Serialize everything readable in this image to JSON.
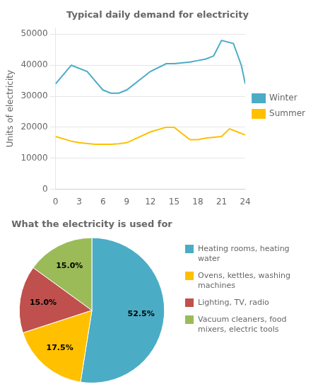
{
  "chart_data": [
    {
      "type": "line",
      "title": "Typical daily demand for electricity",
      "ylabel": "Units of electricity",
      "xlim": [
        0,
        24
      ],
      "xticks": [
        0,
        3,
        6,
        9,
        12,
        15,
        18,
        21,
        24
      ],
      "ylim": [
        0,
        52000
      ],
      "yticks": [
        0,
        10000,
        20000,
        30000,
        40000,
        50000
      ],
      "grid": "y",
      "legend": "right",
      "series": [
        {
          "name": "Winter",
          "color": "#4BACC6",
          "x": [
            0,
            2,
            4,
            6,
            7,
            8,
            9,
            12,
            14,
            15,
            17,
            18,
            19,
            20,
            21,
            22.5,
            23.5,
            24
          ],
          "values": [
            34000,
            40000,
            38000,
            32000,
            31000,
            31000,
            32000,
            38000,
            40500,
            40500,
            41000,
            41500,
            42000,
            43000,
            48000,
            47000,
            40000,
            34000
          ]
        },
        {
          "name": "Summer",
          "color": "#FFC000",
          "x": [
            0,
            2,
            3,
            5,
            7,
            8,
            9,
            12,
            14,
            15,
            17,
            18,
            19,
            21,
            22,
            23,
            24
          ],
          "values": [
            17000,
            15500,
            15000,
            14500,
            14500,
            14700,
            15000,
            18500,
            20000,
            20000,
            16000,
            16000,
            16500,
            17000,
            19500,
            18500,
            17500
          ]
        }
      ]
    },
    {
      "type": "pie",
      "title": "What the electricity is used for",
      "categories": [
        "Heating rooms, heating\nwater",
        "Ovens, kettles, washing\nmachines",
        "Lighting, TV, radio",
        "Vacuum cleaners, food\nmixers, electric tools"
      ],
      "values": [
        52.5,
        17.5,
        15.0,
        15.0
      ],
      "value_labels": [
        "52.5%",
        "17.5%",
        "15.0%",
        "15.0%"
      ],
      "colors": [
        "#4BACC6",
        "#FFC000",
        "#C0504D",
        "#9BBB59"
      ],
      "data_labels": true,
      "legend": "right"
    }
  ]
}
